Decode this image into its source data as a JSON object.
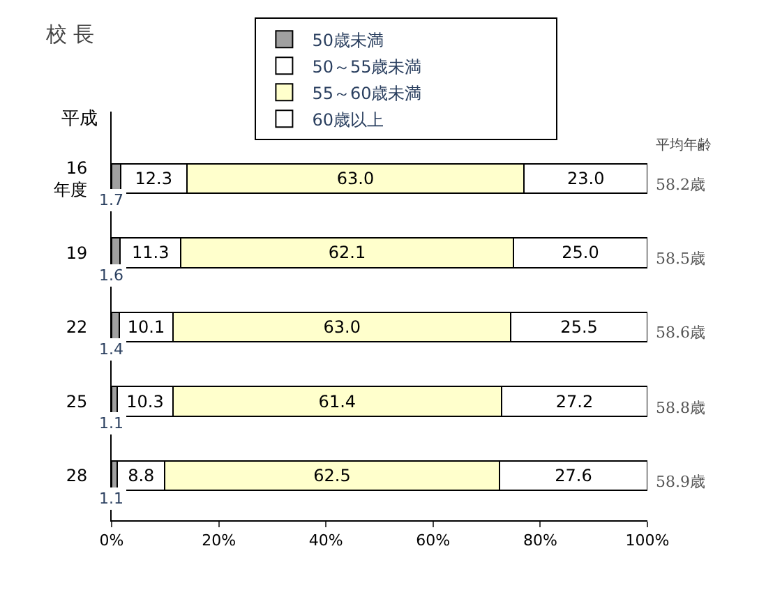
{
  "chart_data": {
    "type": "bar",
    "orientation": "horizontal",
    "stacked": true,
    "title": "校 長",
    "ylabel": "平成",
    "categories": [
      "16\n年度",
      "19",
      "22",
      "25",
      "28"
    ],
    "series": [
      {
        "name": "50歳未満",
        "color": "#a0a0a0",
        "values": [
          1.7,
          1.6,
          1.4,
          1.1,
          1.1
        ],
        "value_labels": [
          "1.7",
          "1.6",
          "1.4",
          "1.1",
          "1.1"
        ]
      },
      {
        "name": "50～55歳未満",
        "color": "#ffffff",
        "values": [
          12.3,
          11.3,
          10.1,
          10.3,
          8.8
        ],
        "value_labels": [
          "12.3",
          "11.3",
          "10.1",
          "10.3",
          "8.8"
        ]
      },
      {
        "name": "55～60歳未満",
        "color": "#ffffcc",
        "values": [
          63.0,
          62.1,
          63.0,
          61.4,
          62.5
        ],
        "value_labels": [
          "63.0",
          "62.1",
          "63.0",
          "61.4",
          "62.5"
        ]
      },
      {
        "name": "60歳以上",
        "color": "#ffffff",
        "values": [
          23.0,
          25.0,
          25.5,
          27.2,
          27.6
        ],
        "value_labels": [
          "23.0",
          "25.0",
          "25.5",
          "27.2",
          "27.6"
        ]
      }
    ],
    "xlim": [
      0,
      100
    ],
    "xticks": [
      {
        "value": 0,
        "label": "0%"
      },
      {
        "value": 20,
        "label": "20%"
      },
      {
        "value": 40,
        "label": "40%"
      },
      {
        "value": 60,
        "label": "60%"
      },
      {
        "value": 80,
        "label": "80%"
      },
      {
        "value": 100,
        "label": "100%"
      }
    ],
    "legend": "top",
    "annotations": [
      "平均年齢",
      "58.2歳",
      "58.5歳",
      "58.6歳",
      "58.8歳",
      "58.9歳"
    ]
  }
}
